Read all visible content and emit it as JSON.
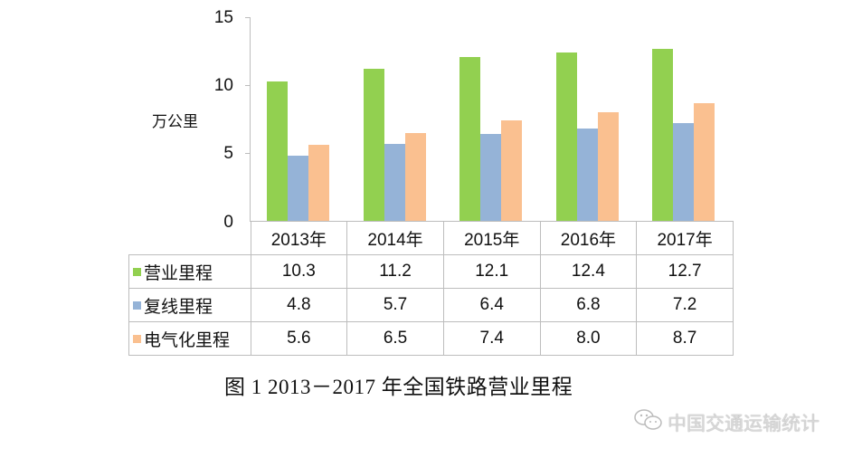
{
  "chart_data": {
    "type": "bar",
    "title": "图 1    2013－2017 年全国铁路营业里程",
    "xlabel": "",
    "ylabel": "万公里",
    "ylim": [
      0,
      15
    ],
    "yticks": [
      "0",
      "5",
      "10",
      "15"
    ],
    "grid": false,
    "legend_position": "data-table",
    "categories": [
      "2013年",
      "2014年",
      "2015年",
      "2016年",
      "2017年"
    ],
    "series": [
      {
        "name": "营业里程",
        "color": "#92d050",
        "values": [
          10.3,
          11.2,
          12.1,
          12.4,
          12.7
        ],
        "labels": [
          "10.3",
          "11.2",
          "12.1",
          "12.4",
          "12.7"
        ]
      },
      {
        "name": "复线里程",
        "color": "#95b3d7",
        "values": [
          4.8,
          5.7,
          6.4,
          6.8,
          7.2
        ],
        "labels": [
          "4.8",
          "5.7",
          "6.4",
          "6.8",
          "7.2"
        ]
      },
      {
        "name": "电气化里程",
        "color": "#fac090",
        "values": [
          5.6,
          6.5,
          7.4,
          8.0,
          8.7
        ],
        "labels": [
          "5.6",
          "6.5",
          "7.4",
          "8.0",
          "8.7"
        ]
      }
    ]
  },
  "caption": "图 1    2013－2017 年全国铁路营业里程",
  "watermark": {
    "icon": "wechat-icon",
    "text": "中国交通运输统计"
  }
}
